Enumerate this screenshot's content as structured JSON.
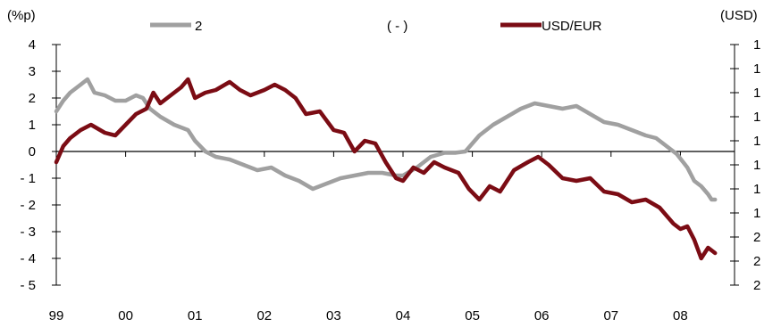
{
  "chart_data": {
    "type": "line",
    "left_axis": {
      "unit_label": "(%p)",
      "ticks": [
        4,
        3,
        2,
        1,
        0,
        -1,
        -2,
        -3,
        -4,
        -5
      ],
      "tick_labels": [
        "4",
        "3",
        "2",
        "1",
        "0",
        "- 1",
        "- 2",
        "- 3",
        "- 4",
        "- 5"
      ],
      "ylim": [
        -5,
        4
      ]
    },
    "right_axis": {
      "unit_label": "(USD)",
      "tick_labels": [
        "1",
        "1",
        "1",
        "1",
        "1",
        "1",
        "1",
        "1",
        "2",
        "2",
        "2"
      ]
    },
    "x_axis": {
      "tick_labels": [
        "99",
        "00",
        "01",
        "02",
        "03",
        "04",
        "05",
        "06",
        "07",
        "08"
      ],
      "xlim": [
        1999.0,
        2008.6
      ]
    },
    "zero_line": 0,
    "legend": {
      "gray_label": "2",
      "middle_text": "(       -       )",
      "red_label": "USD/EUR"
    },
    "series": [
      {
        "name": "2",
        "axis": "left",
        "color": "#a0a0a0",
        "x": [
          1999.0,
          1999.1,
          1999.2,
          1999.35,
          1999.45,
          1999.55,
          1999.7,
          1999.85,
          2000.0,
          2000.15,
          2000.25,
          2000.35,
          2000.5,
          2000.7,
          2000.9,
          2001.0,
          2001.15,
          2001.3,
          2001.5,
          2001.7,
          2001.9,
          2002.1,
          2002.3,
          2002.5,
          2002.7,
          2002.9,
          2003.1,
          2003.3,
          2003.5,
          2003.7,
          2003.9,
          2004.0,
          2004.2,
          2004.4,
          2004.6,
          2004.75,
          2004.9,
          2005.1,
          2005.3,
          2005.5,
          2005.7,
          2005.9,
          2006.1,
          2006.3,
          2006.5,
          2006.7,
          2006.9,
          2007.1,
          2007.3,
          2007.5,
          2007.65,
          2007.8,
          2007.95,
          2008.1,
          2008.2,
          2008.3,
          2008.4,
          2008.45,
          2008.5
        ],
        "y": [
          1.5,
          1.9,
          2.2,
          2.5,
          2.7,
          2.2,
          2.1,
          1.9,
          1.9,
          2.1,
          2.0,
          1.6,
          1.3,
          1.0,
          0.8,
          0.4,
          0.0,
          -0.2,
          -0.3,
          -0.5,
          -0.7,
          -0.6,
          -0.9,
          -1.1,
          -1.4,
          -1.2,
          -1.0,
          -0.9,
          -0.8,
          -0.8,
          -0.9,
          -0.9,
          -0.6,
          -0.2,
          -0.05,
          -0.05,
          0.0,
          0.6,
          1.0,
          1.3,
          1.6,
          1.8,
          1.7,
          1.6,
          1.7,
          1.4,
          1.1,
          1.0,
          0.8,
          0.6,
          0.5,
          0.2,
          -0.1,
          -0.6,
          -1.1,
          -1.3,
          -1.6,
          -1.8,
          -1.8
        ]
      },
      {
        "name": "USD/EUR",
        "axis": "left",
        "color": "#7b0c14",
        "x": [
          1999.0,
          1999.1,
          1999.2,
          1999.35,
          1999.5,
          1999.7,
          1999.85,
          2000.0,
          2000.15,
          2000.3,
          2000.4,
          2000.5,
          2000.65,
          2000.8,
          2000.9,
          2001.0,
          2001.15,
          2001.3,
          2001.5,
          2001.65,
          2001.8,
          2002.0,
          2002.15,
          2002.3,
          2002.45,
          2002.6,
          2002.8,
          2003.0,
          2003.15,
          2003.3,
          2003.45,
          2003.6,
          2003.75,
          2003.9,
          2004.0,
          2004.15,
          2004.3,
          2004.45,
          2004.6,
          2004.8,
          2004.95,
          2005.1,
          2005.25,
          2005.4,
          2005.6,
          2005.8,
          2005.95,
          2006.1,
          2006.3,
          2006.5,
          2006.7,
          2006.9,
          2007.1,
          2007.3,
          2007.5,
          2007.7,
          2007.9,
          2008.0,
          2008.1,
          2008.2,
          2008.3,
          2008.4,
          2008.5
        ],
        "y": [
          -0.4,
          0.2,
          0.5,
          0.8,
          1.0,
          0.7,
          0.6,
          1.0,
          1.4,
          1.6,
          2.2,
          1.8,
          2.1,
          2.4,
          2.7,
          2.0,
          2.2,
          2.3,
          2.6,
          2.3,
          2.1,
          2.3,
          2.5,
          2.3,
          2.0,
          1.4,
          1.5,
          0.8,
          0.7,
          0.0,
          0.4,
          0.3,
          -0.4,
          -1.0,
          -1.1,
          -0.6,
          -0.8,
          -0.4,
          -0.6,
          -0.8,
          -1.4,
          -1.8,
          -1.3,
          -1.5,
          -0.7,
          -0.4,
          -0.2,
          -0.5,
          -1.0,
          -1.1,
          -1.0,
          -1.5,
          -1.6,
          -1.9,
          -1.8,
          -2.1,
          -2.7,
          -2.9,
          -2.8,
          -3.3,
          -4.0,
          -3.6,
          -3.8
        ]
      }
    ]
  }
}
